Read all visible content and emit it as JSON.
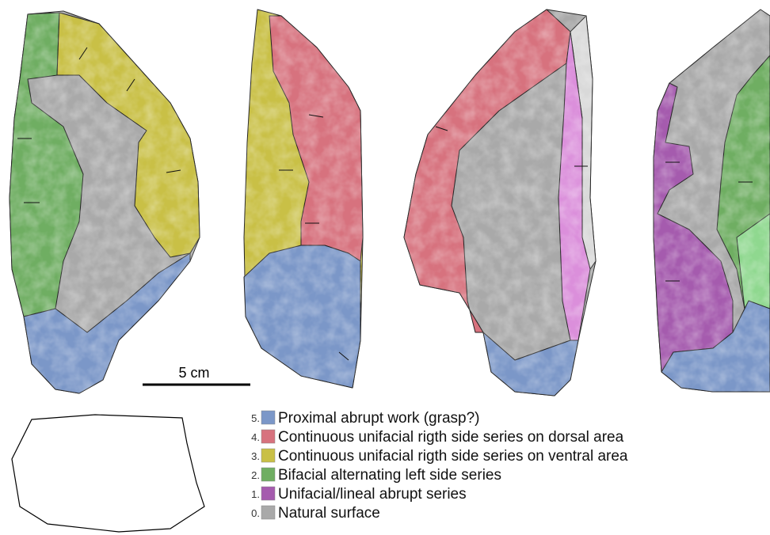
{
  "scale_bar": {
    "label": "5 cm"
  },
  "legend": {
    "items": [
      {
        "number": "5.",
        "label": "Proximal abrupt work (grasp?)",
        "color": "#7b97c8"
      },
      {
        "number": "4.",
        "label": "Continuous unifacial rigth side series on dorsal area",
        "color": "#d7727e"
      },
      {
        "number": "3.",
        "label": "Continuous unifacial rigth side series on ventral area",
        "color": "#c9c046"
      },
      {
        "number": "2.",
        "label": "Bifacial alternating left side series",
        "color": "#6fae62"
      },
      {
        "number": "1.",
        "label": "Unifacial/lineal abrupt series",
        "color": "#a55bae"
      },
      {
        "number": "0.",
        "label": "Natural surface",
        "color": "#a9a9a9"
      }
    ]
  }
}
